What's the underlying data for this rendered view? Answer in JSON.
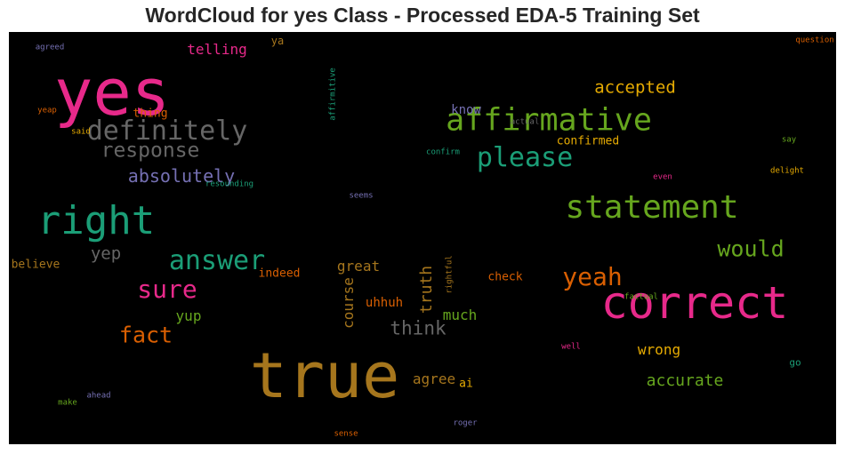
{
  "chart_data": {
    "type": "wordcloud",
    "title": "WordCloud for yes Class - Processed EDA-5 Training Set",
    "background": "#000000",
    "words": [
      {
        "text": "yes",
        "weight": 1.0,
        "color": "#e7298a"
      },
      {
        "text": "true",
        "weight": 0.98,
        "color": "#a6761d"
      },
      {
        "text": "correct",
        "weight": 0.72,
        "color": "#e7298a"
      },
      {
        "text": "right",
        "weight": 0.63,
        "color": "#1b9e77"
      },
      {
        "text": "statement",
        "weight": 0.52,
        "color": "#66a61e"
      },
      {
        "text": "affirmative",
        "weight": 0.5,
        "color": "#66a61e"
      },
      {
        "text": "definitely",
        "weight": 0.47,
        "color": "#666666"
      },
      {
        "text": "please",
        "weight": 0.44,
        "color": "#1b9e77"
      },
      {
        "text": "answer",
        "weight": 0.44,
        "color": "#1b9e77"
      },
      {
        "text": "sure",
        "weight": 0.41,
        "color": "#e7298a"
      },
      {
        "text": "yeah",
        "weight": 0.41,
        "color": "#d95f02"
      },
      {
        "text": "fact",
        "weight": 0.36,
        "color": "#d95f02"
      },
      {
        "text": "would",
        "weight": 0.36,
        "color": "#66a61e"
      },
      {
        "text": "response",
        "weight": 0.33,
        "color": "#666666"
      },
      {
        "text": "think",
        "weight": 0.3,
        "color": "#666666"
      },
      {
        "text": "absolutely",
        "weight": 0.28,
        "color": "#7570b3"
      },
      {
        "text": "accepted",
        "weight": 0.28,
        "color": "#e6ab02"
      },
      {
        "text": "yep",
        "weight": 0.28,
        "color": "#666666"
      },
      {
        "text": "accurate",
        "weight": 0.27,
        "color": "#66a61e"
      },
      {
        "text": "truth",
        "weight": 0.27,
        "color": "#a6761d"
      },
      {
        "text": "telling",
        "weight": 0.24,
        "color": "#e7298a"
      },
      {
        "text": "yup",
        "weight": 0.23,
        "color": "#66a61e"
      },
      {
        "text": "wrong",
        "weight": 0.23,
        "color": "#e6ab02"
      },
      {
        "text": "agree",
        "weight": 0.23,
        "color": "#a6761d"
      },
      {
        "text": "great",
        "weight": 0.22,
        "color": "#a6761d"
      },
      {
        "text": "course",
        "weight": 0.22,
        "color": "#a6761d"
      },
      {
        "text": "much",
        "weight": 0.21,
        "color": "#66a61e"
      },
      {
        "text": "uhhuh",
        "weight": 0.2,
        "color": "#d95f02"
      },
      {
        "text": "know",
        "weight": 0.2,
        "color": "#7570b3"
      },
      {
        "text": "believe",
        "weight": 0.19,
        "color": "#a6761d"
      },
      {
        "text": "indeed",
        "weight": 0.19,
        "color": "#d95f02"
      },
      {
        "text": "confirmed",
        "weight": 0.19,
        "color": "#e6ab02"
      },
      {
        "text": "check",
        "weight": 0.19,
        "color": "#d95f02"
      },
      {
        "text": "ai",
        "weight": 0.17,
        "color": "#e6ab02"
      },
      {
        "text": "thing",
        "weight": 0.16,
        "color": "#d95f02"
      },
      {
        "text": "ya",
        "weight": 0.15,
        "color": "#a6761d"
      },
      {
        "text": "go",
        "weight": 0.14,
        "color": "#1b9e77"
      },
      {
        "text": "question",
        "weight": 0.12,
        "color": "#d95f02"
      },
      {
        "text": "agreed",
        "weight": 0.12,
        "color": "#7570b3"
      },
      {
        "text": "yeap",
        "weight": 0.12,
        "color": "#d95f02"
      },
      {
        "text": "said",
        "weight": 0.12,
        "color": "#e6ab02"
      },
      {
        "text": "actual",
        "weight": 0.12,
        "color": "#666666"
      },
      {
        "text": "say",
        "weight": 0.12,
        "color": "#66a61e"
      },
      {
        "text": "confirm",
        "weight": 0.12,
        "color": "#1b9e77"
      },
      {
        "text": "delight",
        "weight": 0.12,
        "color": "#e6ab02"
      },
      {
        "text": "resounding",
        "weight": 0.12,
        "color": "#1b9e77"
      },
      {
        "text": "even",
        "weight": 0.12,
        "color": "#e7298a"
      },
      {
        "text": "seems",
        "weight": 0.12,
        "color": "#7570b3"
      },
      {
        "text": "factual",
        "weight": 0.12,
        "color": "#66a61e"
      },
      {
        "text": "well",
        "weight": 0.12,
        "color": "#e7298a"
      },
      {
        "text": "ahead",
        "weight": 0.12,
        "color": "#7570b3"
      },
      {
        "text": "make",
        "weight": 0.12,
        "color": "#66a61e"
      },
      {
        "text": "roger",
        "weight": 0.12,
        "color": "#7570b3"
      },
      {
        "text": "sense",
        "weight": 0.12,
        "color": "#d95f02"
      },
      {
        "text": "affirmitive",
        "weight": 0.12,
        "color": "#1b9e77"
      },
      {
        "text": "rightful",
        "weight": 0.12,
        "color": "#a6761d"
      }
    ]
  }
}
